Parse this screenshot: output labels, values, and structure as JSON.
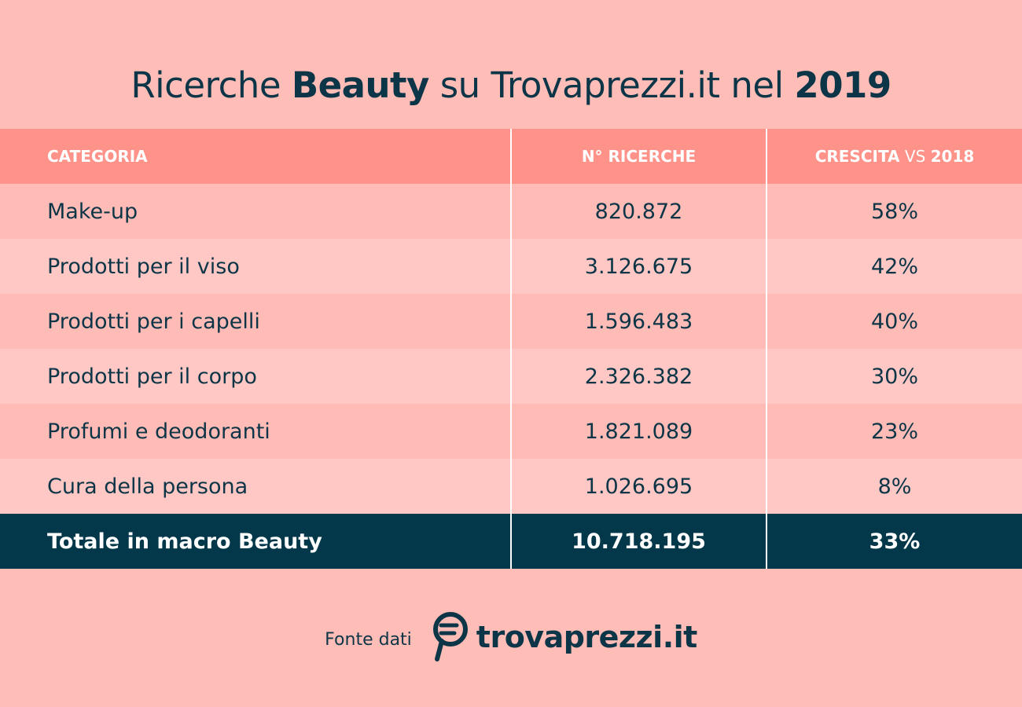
{
  "title": {
    "part1": "Ricerche ",
    "bold1": "Beauty",
    "part2": " su Trovaprezzi.it nel ",
    "bold2": "2019"
  },
  "chart_data": {
    "type": "table",
    "columns": {
      "category": "CATEGORIA",
      "searches": "N° RICERCHE",
      "growth_bold1": "CRESCITA",
      "growth_light": " VS ",
      "growth_bold2": "2018"
    },
    "rows": [
      {
        "category": "Make-up",
        "searches": "820.872",
        "growth": "58%"
      },
      {
        "category": "Prodotti per il viso",
        "searches": "3.126.675",
        "growth": "42%"
      },
      {
        "category": "Prodotti per i capelli",
        "searches": "1.596.483",
        "growth": "40%"
      },
      {
        "category": "Prodotti per il corpo",
        "searches": "2.326.382",
        "growth": "30%"
      },
      {
        "category": "Profumi e deodoranti",
        "searches": "1.821.089",
        "growth": "23%"
      },
      {
        "category": "Cura della persona",
        "searches": "1.026.695",
        "growth": "8%"
      }
    ],
    "total": {
      "category": "Totale in macro Beauty",
      "searches": "10.718.195",
      "growth": "33%"
    }
  },
  "footer": {
    "label": "Fonte dati",
    "logo_text": "trovaprezzi.it",
    "logo_icon": "magnifier-euro-icon"
  },
  "colors": {
    "background": "#ffbdb7",
    "header": "#ff938a",
    "row_odd": "#ffbcb6",
    "row_even": "#ffc8c4",
    "total_row": "#03384b",
    "text_dark": "#0c3547"
  }
}
